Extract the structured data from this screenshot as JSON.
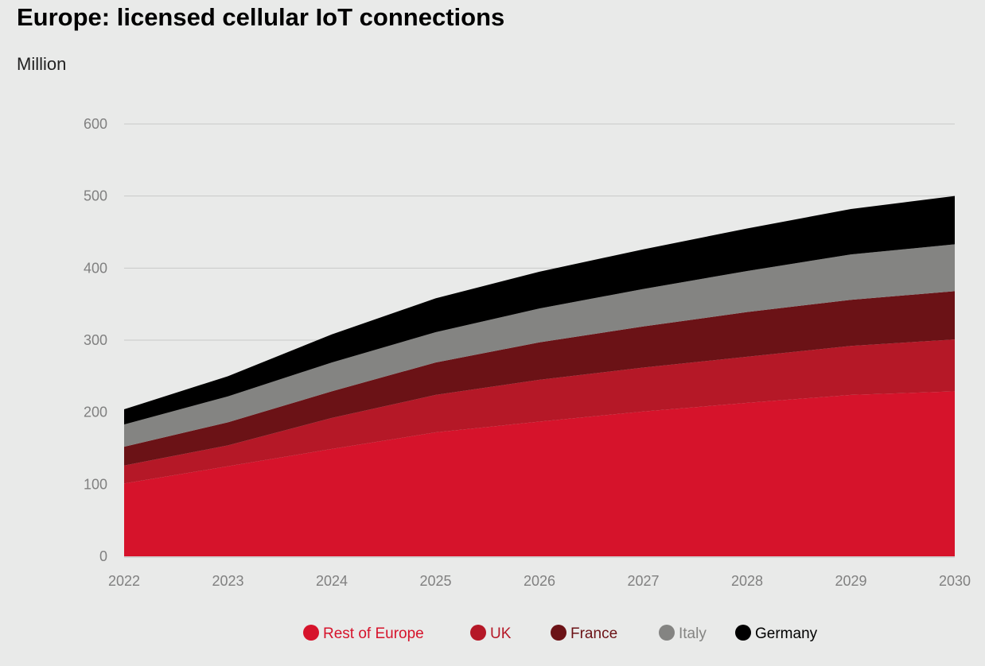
{
  "chart_data": {
    "type": "area",
    "stacked": true,
    "title": "Europe: licensed cellular IoT connections",
    "ylabel": "Million",
    "xlabel": "",
    "x": [
      "2022",
      "2023",
      "2024",
      "2025",
      "2026",
      "2027",
      "2028",
      "2029",
      "2030"
    ],
    "ylim": [
      0,
      600
    ],
    "yticks": [
      0,
      100,
      200,
      300,
      400,
      500,
      600
    ],
    "grid": true,
    "legend_position": "bottom",
    "series": [
      {
        "name": "Rest of Europe",
        "color": "#d6132b",
        "values": [
          101,
          125,
          149,
          172,
          187,
          201,
          213,
          224,
          229
        ]
      },
      {
        "name": "UK",
        "color": "#b51827",
        "values": [
          25,
          29,
          43,
          52,
          58,
          61,
          64,
          68,
          72
        ]
      },
      {
        "name": "France",
        "color": "#6b1216",
        "values": [
          26,
          32,
          37,
          45,
          52,
          57,
          62,
          64,
          67
        ]
      },
      {
        "name": "Italy",
        "color": "#848482",
        "values": [
          31,
          36,
          40,
          42,
          47,
          52,
          57,
          63,
          65
        ]
      },
      {
        "name": "Germany",
        "color": "#000000",
        "values": [
          21,
          28,
          39,
          47,
          51,
          55,
          59,
          63,
          67
        ]
      }
    ]
  }
}
